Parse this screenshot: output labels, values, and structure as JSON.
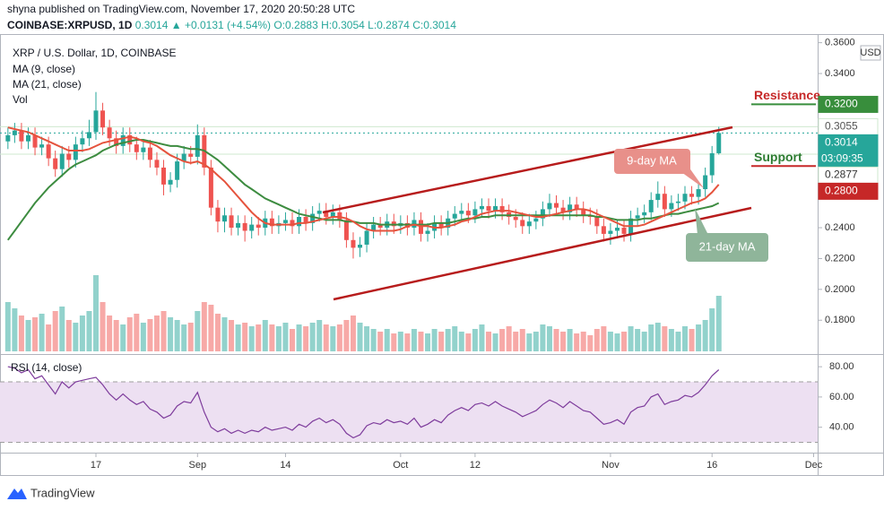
{
  "header": {
    "published": "shyna published on TradingView.com, November 17, 2020 20:50:28 UTC",
    "symbol": "COINBASE:XRPUSD, 1D",
    "last": "0.3014",
    "change": "▲ +0.0131 (+4.54%)",
    "ohlc": [
      "O:0.2883",
      "H:0.3054",
      "L:0.2874",
      "C:0.3014"
    ]
  },
  "footer": {
    "brand": "TradingView"
  },
  "chart_data": {
    "type": "candlestick",
    "title": "XRP / U.S. Dollar, 1D, COINBASE",
    "currency": "USD",
    "up_color": "#26a69a",
    "down_color": "#ef5350",
    "xlim": [
      -1.17,
      119.6
    ],
    "xticks": [
      {
        "value": 13,
        "label": "17"
      },
      {
        "value": 28,
        "label": "Sep"
      },
      {
        "value": 41,
        "label": "14"
      },
      {
        "value": 58,
        "label": "Oct"
      },
      {
        "value": 69,
        "label": "12"
      },
      {
        "value": 89,
        "label": "Nov"
      },
      {
        "value": 104,
        "label": "16"
      },
      {
        "value": 119,
        "label": "Dec"
      }
    ],
    "ylim": [
      0.1598,
      0.3656
    ],
    "yticks": [
      {
        "value": 0.18,
        "label": "0.1800"
      },
      {
        "value": 0.2,
        "label": "0.2000"
      },
      {
        "value": 0.22,
        "label": "0.2200"
      },
      {
        "value": 0.24,
        "label": "0.2400"
      },
      {
        "value": 0.34,
        "label": "0.3400"
      },
      {
        "value": 0.36,
        "label": "0.3600"
      }
    ],
    "grid": false,
    "candles": {
      "open": [
        0.296,
        0.3,
        0.303,
        0.296,
        0.3,
        0.292,
        0.294,
        0.285,
        0.278,
        0.288,
        0.284,
        0.294,
        0.298,
        0.302,
        0.316,
        0.305,
        0.298,
        0.293,
        0.3,
        0.294,
        0.289,
        0.292,
        0.284,
        0.279,
        0.268,
        0.271,
        0.283,
        0.288,
        0.286,
        0.3,
        0.279,
        0.253,
        0.244,
        0.248,
        0.24,
        0.243,
        0.238,
        0.242,
        0.24,
        0.246,
        0.241,
        0.243,
        0.245,
        0.241,
        0.247,
        0.243,
        0.249,
        0.251,
        0.247,
        0.25,
        0.245,
        0.232,
        0.227,
        0.229,
        0.238,
        0.242,
        0.24,
        0.244,
        0.241,
        0.243,
        0.24,
        0.245,
        0.236,
        0.238,
        0.243,
        0.24,
        0.246,
        0.249,
        0.251,
        0.248,
        0.252,
        0.254,
        0.251,
        0.254,
        0.25,
        0.247,
        0.245,
        0.241,
        0.244,
        0.246,
        0.252,
        0.256,
        0.253,
        0.25,
        0.255,
        0.252,
        0.248,
        0.247,
        0.241,
        0.236,
        0.238,
        0.24,
        0.236,
        0.246,
        0.248,
        0.25,
        0.258,
        0.262,
        0.252,
        0.256,
        0.257,
        0.262,
        0.26,
        0.265,
        0.274,
        0.2883
      ],
      "high": [
        0.305,
        0.308,
        0.308,
        0.305,
        0.305,
        0.299,
        0.299,
        0.29,
        0.293,
        0.293,
        0.299,
        0.303,
        0.31,
        0.328,
        0.321,
        0.31,
        0.303,
        0.305,
        0.305,
        0.299,
        0.297,
        0.297,
        0.289,
        0.284,
        0.276,
        0.288,
        0.293,
        0.293,
        0.307,
        0.305,
        0.284,
        0.258,
        0.253,
        0.253,
        0.248,
        0.248,
        0.247,
        0.247,
        0.251,
        0.251,
        0.248,
        0.25,
        0.25,
        0.252,
        0.252,
        0.254,
        0.256,
        0.256,
        0.255,
        0.255,
        0.25,
        0.237,
        0.234,
        0.243,
        0.247,
        0.247,
        0.249,
        0.249,
        0.248,
        0.248,
        0.25,
        0.25,
        0.243,
        0.248,
        0.248,
        0.251,
        0.254,
        0.256,
        0.256,
        0.257,
        0.259,
        0.259,
        0.259,
        0.259,
        0.255,
        0.252,
        0.25,
        0.249,
        0.251,
        0.257,
        0.262,
        0.261,
        0.258,
        0.26,
        0.26,
        0.257,
        0.253,
        0.252,
        0.246,
        0.243,
        0.245,
        0.245,
        0.251,
        0.253,
        0.255,
        0.263,
        0.27,
        0.267,
        0.261,
        0.262,
        0.267,
        0.267,
        0.27,
        0.279,
        0.293,
        0.3054
      ],
      "low": [
        0.291,
        0.295,
        0.291,
        0.291,
        0.287,
        0.287,
        0.28,
        0.273,
        0.273,
        0.279,
        0.279,
        0.289,
        0.293,
        0.297,
        0.3,
        0.293,
        0.288,
        0.288,
        0.289,
        0.284,
        0.284,
        0.279,
        0.274,
        0.261,
        0.263,
        0.266,
        0.278,
        0.281,
        0.281,
        0.274,
        0.248,
        0.237,
        0.237,
        0.235,
        0.235,
        0.231,
        0.233,
        0.235,
        0.235,
        0.236,
        0.236,
        0.238,
        0.236,
        0.236,
        0.238,
        0.238,
        0.244,
        0.242,
        0.242,
        0.24,
        0.227,
        0.22,
        0.221,
        0.224,
        0.233,
        0.235,
        0.235,
        0.236,
        0.236,
        0.235,
        0.235,
        0.231,
        0.231,
        0.233,
        0.235,
        0.235,
        0.241,
        0.244,
        0.243,
        0.243,
        0.247,
        0.246,
        0.246,
        0.245,
        0.242,
        0.24,
        0.236,
        0.236,
        0.239,
        0.241,
        0.247,
        0.248,
        0.245,
        0.245,
        0.247,
        0.243,
        0.242,
        0.236,
        0.231,
        0.229,
        0.233,
        0.231,
        0.231,
        0.241,
        0.243,
        0.245,
        0.253,
        0.247,
        0.247,
        0.251,
        0.252,
        0.255,
        0.255,
        0.26,
        0.269,
        0.2874
      ],
      "close": [
        0.3,
        0.303,
        0.296,
        0.3,
        0.292,
        0.294,
        0.285,
        0.278,
        0.288,
        0.284,
        0.294,
        0.298,
        0.302,
        0.316,
        0.305,
        0.298,
        0.293,
        0.3,
        0.294,
        0.289,
        0.292,
        0.284,
        0.279,
        0.268,
        0.271,
        0.283,
        0.288,
        0.286,
        0.3,
        0.279,
        0.253,
        0.244,
        0.248,
        0.24,
        0.243,
        0.238,
        0.242,
        0.24,
        0.246,
        0.241,
        0.243,
        0.245,
        0.241,
        0.247,
        0.243,
        0.249,
        0.251,
        0.247,
        0.25,
        0.245,
        0.232,
        0.227,
        0.229,
        0.238,
        0.242,
        0.24,
        0.244,
        0.241,
        0.243,
        0.24,
        0.245,
        0.236,
        0.238,
        0.243,
        0.24,
        0.246,
        0.249,
        0.251,
        0.248,
        0.252,
        0.254,
        0.251,
        0.254,
        0.25,
        0.247,
        0.245,
        0.241,
        0.244,
        0.246,
        0.252,
        0.256,
        0.253,
        0.25,
        0.255,
        0.252,
        0.248,
        0.247,
        0.241,
        0.236,
        0.238,
        0.24,
        0.236,
        0.246,
        0.248,
        0.25,
        0.258,
        0.262,
        0.252,
        0.256,
        0.257,
        0.262,
        0.26,
        0.265,
        0.274,
        0.2883,
        0.3014
      ]
    },
    "ma9": {
      "name": "MA (9, close)",
      "color": "#e5533d",
      "values": [
        0.305,
        0.304,
        0.303,
        0.302,
        0.3,
        0.298,
        0.296,
        0.294,
        0.292,
        0.29,
        0.29,
        0.29,
        0.291,
        0.293,
        0.295,
        0.296,
        0.297,
        0.298,
        0.299,
        0.298,
        0.296,
        0.295,
        0.293,
        0.29,
        0.287,
        0.285,
        0.283,
        0.282,
        0.283,
        0.281,
        0.278,
        0.274,
        0.27,
        0.265,
        0.26,
        0.255,
        0.25,
        0.246,
        0.243,
        0.242,
        0.242,
        0.242,
        0.242,
        0.243,
        0.243,
        0.244,
        0.245,
        0.246,
        0.247,
        0.247,
        0.246,
        0.244,
        0.241,
        0.239,
        0.238,
        0.238,
        0.238,
        0.238,
        0.239,
        0.241,
        0.242,
        0.241,
        0.241,
        0.24,
        0.24,
        0.241,
        0.242,
        0.244,
        0.245,
        0.247,
        0.249,
        0.25,
        0.251,
        0.251,
        0.251,
        0.25,
        0.249,
        0.248,
        0.247,
        0.247,
        0.248,
        0.249,
        0.25,
        0.251,
        0.252,
        0.252,
        0.251,
        0.249,
        0.247,
        0.245,
        0.243,
        0.241,
        0.241,
        0.241,
        0.242,
        0.244,
        0.246,
        0.248,
        0.25,
        0.252,
        0.254,
        0.256,
        0.257,
        0.259,
        0.263,
        0.268
      ]
    },
    "ma21": {
      "name": "MA (21, close)",
      "color": "#3d8c40",
      "values": [
        0.232,
        0.238,
        0.244,
        0.25,
        0.256,
        0.261,
        0.266,
        0.27,
        0.274,
        0.278,
        0.281,
        0.283,
        0.285,
        0.287,
        0.29,
        0.292,
        0.294,
        0.295,
        0.296,
        0.297,
        0.297,
        0.296,
        0.295,
        0.294,
        0.293,
        0.293,
        0.292,
        0.291,
        0.291,
        0.29,
        0.287,
        0.284,
        0.28,
        0.276,
        0.272,
        0.268,
        0.265,
        0.262,
        0.259,
        0.257,
        0.255,
        0.253,
        0.251,
        0.249,
        0.248,
        0.247,
        0.246,
        0.245,
        0.245,
        0.245,
        0.244,
        0.244,
        0.243,
        0.243,
        0.243,
        0.242,
        0.242,
        0.242,
        0.242,
        0.242,
        0.242,
        0.242,
        0.242,
        0.243,
        0.243,
        0.243,
        0.244,
        0.245,
        0.246,
        0.246,
        0.247,
        0.247,
        0.248,
        0.248,
        0.248,
        0.248,
        0.248,
        0.248,
        0.248,
        0.248,
        0.248,
        0.248,
        0.248,
        0.248,
        0.248,
        0.248,
        0.248,
        0.247,
        0.247,
        0.246,
        0.245,
        0.245,
        0.245,
        0.245,
        0.246,
        0.246,
        0.247,
        0.248,
        0.249,
        0.249,
        0.25,
        0.251,
        0.252,
        0.253,
        0.254,
        0.256
      ]
    },
    "volume": {
      "name": "Vol",
      "ylim": [
        0,
        100
      ],
      "values": [
        55,
        48,
        40,
        35,
        38,
        42,
        30,
        45,
        50,
        35,
        32,
        40,
        45,
        85,
        55,
        40,
        35,
        30,
        38,
        42,
        32,
        36,
        40,
        45,
        38,
        35,
        30,
        32,
        45,
        55,
        52,
        42,
        38,
        35,
        30,
        32,
        28,
        30,
        35,
        30,
        28,
        32,
        25,
        30,
        28,
        32,
        35,
        30,
        28,
        30,
        35,
        40,
        32,
        28,
        25,
        22,
        25,
        20,
        22,
        20,
        25,
        22,
        20,
        25,
        22,
        25,
        28,
        22,
        20,
        25,
        30,
        22,
        20,
        25,
        28,
        22,
        25,
        20,
        22,
        30,
        28,
        25,
        22,
        25,
        20,
        22,
        18,
        25,
        28,
        22,
        20,
        22,
        28,
        25,
        22,
        30,
        32,
        28,
        25,
        22,
        28,
        25,
        30,
        35,
        48,
        62
      ]
    },
    "rsi": {
      "name": "RSI (14, close)",
      "color": "#7e3c9c",
      "band": [
        30,
        70
      ],
      "band_color": "#ede0f2",
      "ylim": [
        23.2,
        87.2
      ],
      "yticks": [
        {
          "value": 40,
          "label": "40.00"
        },
        {
          "value": 60,
          "label": "60.00"
        },
        {
          "value": 80,
          "label": "80.00"
        }
      ],
      "values": [
        80,
        79,
        76,
        78,
        72,
        74,
        68,
        62,
        70,
        66,
        70,
        71,
        72,
        73,
        68,
        62,
        58,
        62,
        58,
        55,
        57,
        52,
        50,
        46,
        48,
        54,
        57,
        56,
        63,
        50,
        40,
        37,
        39,
        36,
        38,
        36,
        38,
        37,
        40,
        38,
        39,
        40,
        38,
        42,
        40,
        44,
        46,
        43,
        45,
        42,
        36,
        33,
        35,
        41,
        43,
        42,
        45,
        43,
        44,
        42,
        46,
        40,
        42,
        45,
        43,
        48,
        51,
        53,
        51,
        55,
        56,
        54,
        57,
        54,
        52,
        50,
        47,
        49,
        51,
        55,
        58,
        56,
        53,
        57,
        54,
        51,
        50,
        46,
        42,
        43,
        45,
        42,
        50,
        53,
        54,
        60,
        62,
        55,
        57,
        58,
        61,
        60,
        63,
        68,
        74,
        78
      ]
    },
    "price_tags": [
      {
        "label": "0.3200",
        "value": 0.32,
        "color": "#388e3c",
        "text_color": "#ffffff"
      },
      {
        "label": "0.3055",
        "value": 0.3055,
        "color": "#ffffff",
        "text_color": "#555555",
        "line_color": "#cfe8cf"
      },
      {
        "label": "0.3014",
        "value": 0.3014,
        "color": "#26a69a",
        "text_color": "#ffffff",
        "line_color": "#26a69a",
        "countdown": "03:09:35"
      },
      {
        "label": "0.2877",
        "value": 0.2877,
        "color": "#ffffff",
        "text_color": "#333333",
        "line_color": "#cfe8cf"
      },
      {
        "label": "0.2800",
        "value": 0.28,
        "color": "#c62828",
        "text_color": "#ffffff"
      }
    ],
    "levels": [
      {
        "text": "Resistance",
        "value": 0.32,
        "color": "#c62828",
        "line_color": "#388e3c"
      },
      {
        "text": "Support",
        "value": 0.28,
        "color": "#2e7d32",
        "line_color": "#c62828"
      }
    ],
    "annotations": [
      "9-day MA",
      "21-day MA"
    ]
  }
}
